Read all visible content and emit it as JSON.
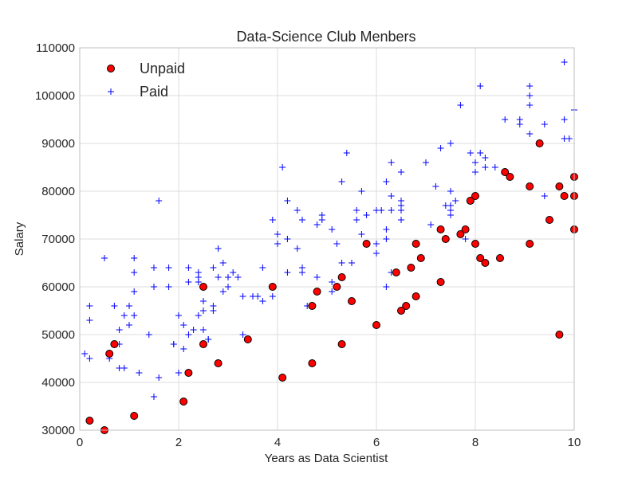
{
  "chart_data": {
    "type": "scatter",
    "title": "Data-Science Club Menbers",
    "xlabel": "Years as Data Scientist",
    "ylabel": "Salary",
    "xlim": [
      0,
      10
    ],
    "ylim": [
      30000,
      110000
    ],
    "xticks": [
      0,
      2,
      4,
      6,
      8,
      10
    ],
    "yticks": [
      30000,
      40000,
      50000,
      60000,
      70000,
      80000,
      90000,
      100000,
      110000
    ],
    "grid": true,
    "legend_position": "top-left",
    "series": [
      {
        "name": "Unpaid",
        "marker": "circle",
        "color": "#ff0000",
        "edge_color": "#000000",
        "points": [
          [
            0.2,
            32000
          ],
          [
            0.5,
            30000
          ],
          [
            0.6,
            46000
          ],
          [
            0.7,
            48000
          ],
          [
            1.1,
            33000
          ],
          [
            2.1,
            36000
          ],
          [
            2.2,
            42000
          ],
          [
            2.5,
            48000
          ],
          [
            2.5,
            60000
          ],
          [
            2.8,
            44000
          ],
          [
            3.4,
            49000
          ],
          [
            3.9,
            60000
          ],
          [
            4.1,
            41000
          ],
          [
            4.7,
            44000
          ],
          [
            4.7,
            56000
          ],
          [
            4.8,
            59000
          ],
          [
            5.2,
            60000
          ],
          [
            5.3,
            48000
          ],
          [
            5.3,
            62000
          ],
          [
            5.5,
            57000
          ],
          [
            5.8,
            69000
          ],
          [
            6.0,
            52000
          ],
          [
            6.4,
            63000
          ],
          [
            6.5,
            55000
          ],
          [
            6.6,
            56000
          ],
          [
            6.7,
            64000
          ],
          [
            6.8,
            58000
          ],
          [
            6.8,
            69000
          ],
          [
            6.9,
            66000
          ],
          [
            7.3,
            61000
          ],
          [
            7.3,
            72000
          ],
          [
            7.4,
            70000
          ],
          [
            7.7,
            71000
          ],
          [
            7.8,
            72000
          ],
          [
            7.9,
            78000
          ],
          [
            8.0,
            69000
          ],
          [
            8.0,
            79000
          ],
          [
            8.1,
            66000
          ],
          [
            8.2,
            65000
          ],
          [
            8.5,
            66000
          ],
          [
            8.6,
            84000
          ],
          [
            8.7,
            83000
          ],
          [
            9.1,
            69000
          ],
          [
            9.1,
            81000
          ],
          [
            9.3,
            90000
          ],
          [
            9.5,
            74000
          ],
          [
            9.7,
            81000
          ],
          [
            9.7,
            50000
          ],
          [
            9.8,
            79000
          ],
          [
            10.0,
            72000
          ],
          [
            10.0,
            79000
          ],
          [
            10.0,
            83000
          ]
        ]
      },
      {
        "name": "Paid",
        "marker": "plus",
        "color": "#0000ff",
        "points": [
          [
            0.1,
            46000
          ],
          [
            0.2,
            45000
          ],
          [
            0.2,
            53000
          ],
          [
            0.2,
            56000
          ],
          [
            0.5,
            66000
          ],
          [
            0.6,
            45000
          ],
          [
            0.7,
            56000
          ],
          [
            0.8,
            48000
          ],
          [
            0.8,
            51000
          ],
          [
            0.8,
            43000
          ],
          [
            0.9,
            43000
          ],
          [
            0.9,
            54000
          ],
          [
            1.0,
            52000
          ],
          [
            1.0,
            56000
          ],
          [
            1.1,
            59000
          ],
          [
            1.1,
            63000
          ],
          [
            1.1,
            66000
          ],
          [
            1.1,
            54000
          ],
          [
            1.2,
            42000
          ],
          [
            1.4,
            50000
          ],
          [
            1.5,
            37000
          ],
          [
            1.5,
            60000
          ],
          [
            1.5,
            64000
          ],
          [
            1.6,
            78000
          ],
          [
            1.6,
            41000
          ],
          [
            1.8,
            60000
          ],
          [
            1.8,
            64000
          ],
          [
            1.9,
            48000
          ],
          [
            1.9,
            48000
          ],
          [
            2.0,
            42000
          ],
          [
            2.0,
            54000
          ],
          [
            2.1,
            47000
          ],
          [
            2.1,
            52000
          ],
          [
            2.2,
            50000
          ],
          [
            2.2,
            61000
          ],
          [
            2.2,
            64000
          ],
          [
            2.3,
            51000
          ],
          [
            2.4,
            54000
          ],
          [
            2.4,
            61000
          ],
          [
            2.4,
            62000
          ],
          [
            2.4,
            63000
          ],
          [
            2.5,
            55000
          ],
          [
            2.5,
            57000
          ],
          [
            2.5,
            51000
          ],
          [
            2.6,
            49000
          ],
          [
            2.6,
            49000
          ],
          [
            2.7,
            55000
          ],
          [
            2.7,
            56000
          ],
          [
            2.7,
            64000
          ],
          [
            2.8,
            62000
          ],
          [
            2.8,
            68000
          ],
          [
            2.9,
            59000
          ],
          [
            2.9,
            65000
          ],
          [
            3.0,
            62000
          ],
          [
            3.0,
            60000
          ],
          [
            3.1,
            63000
          ],
          [
            3.2,
            62000
          ],
          [
            3.3,
            58000
          ],
          [
            3.3,
            50000
          ],
          [
            3.5,
            58000
          ],
          [
            3.6,
            58000
          ],
          [
            3.7,
            57000
          ],
          [
            3.7,
            64000
          ],
          [
            3.9,
            58000
          ],
          [
            3.9,
            74000
          ],
          [
            4.0,
            69000
          ],
          [
            4.0,
            71000
          ],
          [
            4.1,
            85000
          ],
          [
            4.2,
            70000
          ],
          [
            4.2,
            78000
          ],
          [
            4.2,
            63000
          ],
          [
            4.4,
            68000
          ],
          [
            4.4,
            76000
          ],
          [
            4.5,
            74000
          ],
          [
            4.5,
            63000
          ],
          [
            4.5,
            64000
          ],
          [
            4.6,
            56000
          ],
          [
            4.8,
            62000
          ],
          [
            4.8,
            73000
          ],
          [
            4.9,
            74000
          ],
          [
            4.9,
            75000
          ],
          [
            5.1,
            72000
          ],
          [
            5.1,
            59000
          ],
          [
            5.1,
            61000
          ],
          [
            5.2,
            69000
          ],
          [
            5.3,
            82000
          ],
          [
            5.3,
            65000
          ],
          [
            5.4,
            88000
          ],
          [
            5.5,
            65000
          ],
          [
            5.6,
            74000
          ],
          [
            5.6,
            76000
          ],
          [
            5.7,
            80000
          ],
          [
            5.7,
            71000
          ],
          [
            5.8,
            75000
          ],
          [
            6.0,
            76000
          ],
          [
            6.0,
            67000
          ],
          [
            6.0,
            69000
          ],
          [
            6.1,
            76000
          ],
          [
            6.2,
            70000
          ],
          [
            6.2,
            72000
          ],
          [
            6.2,
            82000
          ],
          [
            6.2,
            60000
          ],
          [
            6.3,
            63000
          ],
          [
            6.3,
            76000
          ],
          [
            6.3,
            79000
          ],
          [
            6.3,
            86000
          ],
          [
            6.5,
            74000
          ],
          [
            6.5,
            76000
          ],
          [
            6.5,
            77000
          ],
          [
            6.5,
            78000
          ],
          [
            6.5,
            84000
          ],
          [
            7.0,
            86000
          ],
          [
            7.1,
            73000
          ],
          [
            7.2,
            81000
          ],
          [
            7.3,
            89000
          ],
          [
            7.4,
            77000
          ],
          [
            7.5,
            75000
          ],
          [
            7.5,
            76000
          ],
          [
            7.5,
            77000
          ],
          [
            7.5,
            80000
          ],
          [
            7.5,
            90000
          ],
          [
            7.6,
            78000
          ],
          [
            7.7,
            98000
          ],
          [
            7.8,
            70000
          ],
          [
            7.9,
            88000
          ],
          [
            8.0,
            84000
          ],
          [
            8.0,
            86000
          ],
          [
            8.1,
            102000
          ],
          [
            8.1,
            88000
          ],
          [
            8.2,
            85000
          ],
          [
            8.2,
            87000
          ],
          [
            8.4,
            85000
          ],
          [
            8.6,
            95000
          ],
          [
            8.9,
            94000
          ],
          [
            8.9,
            95000
          ],
          [
            9.1,
            92000
          ],
          [
            9.1,
            98000
          ],
          [
            9.1,
            100000
          ],
          [
            9.1,
            102000
          ],
          [
            9.4,
            79000
          ],
          [
            9.4,
            94000
          ],
          [
            9.8,
            107000
          ],
          [
            9.8,
            95000
          ],
          [
            9.8,
            91000
          ],
          [
            9.9,
            91000
          ],
          [
            10.0,
            97000
          ]
        ]
      }
    ]
  }
}
